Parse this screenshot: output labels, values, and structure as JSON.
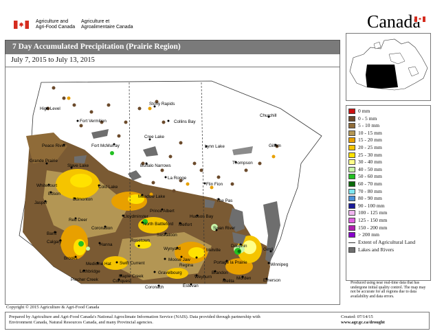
{
  "header": {
    "dept_en_line1": "Agriculture and",
    "dept_en_line2": "Agri-Food Canada",
    "dept_fr_line1": "Agriculture et",
    "dept_fr_line2": "Agroalimentaire Canada",
    "wordmark": "Canada"
  },
  "map": {
    "title": "7 Day Accumulated Precipitation (Prairie Region)",
    "date_range": "July 7, 2015 to July 13, 2015",
    "cities": [
      "High Level",
      "Fort Vermilion",
      "Stony Rapids",
      "Churchill",
      "Collins Bay",
      "Fort McMurray",
      "Cree Lake",
      "Peace River",
      "Gillam",
      "Lynn Lake",
      "Grande Prairie",
      "Slave Lake",
      "Buffalo Narrows",
      "Thompson",
      "Whitecourt",
      "Cold Lake",
      "La Ronge",
      "Flin Fion",
      "Edson",
      "Edmonton",
      "Meadow Lake",
      "Jasper",
      "The Pas",
      "Red Deer",
      "Lloydminster",
      "Prince Albert",
      "North Battleford",
      "Hudson Bay",
      "Coronation",
      "Melfort",
      "Swan River",
      "Calgary",
      "Hanna",
      "Saskatoon",
      "Banff",
      "Rosetown",
      "Wynyard",
      "Dauphin",
      "Brooks",
      "Melville",
      "Medicine Hat",
      "Moose Jaw",
      "Regina",
      "Portage la Prairie",
      "Lethbridge",
      "Swift Current",
      "Pincher Creek",
      "Maple Creek",
      "Gravelbourg",
      "Brandon",
      "Winnipeg",
      "Coronach",
      "Weyburn",
      "Morden",
      "Emerson",
      "Estevan",
      "Melita",
      "Conquest",
      "Gimli"
    ]
  },
  "legend": {
    "items": [
      {
        "label": "0 mm",
        "color": "#cc1111"
      },
      {
        "label": "0 - 5 mm",
        "color": "#6b4a2b"
      },
      {
        "label": "5 - 10 mm",
        "color": "#8f6b38"
      },
      {
        "label": "10 - 15 mm",
        "color": "#b39654"
      },
      {
        "label": "15 - 20 mm",
        "color": "#e8a000"
      },
      {
        "label": "20 - 25 mm",
        "color": "#f5c400"
      },
      {
        "label": "25 - 30 mm",
        "color": "#ffe200"
      },
      {
        "label": "30 - 40 mm",
        "color": "#ffff8a"
      },
      {
        "label": "40 - 50 mm",
        "color": "#c8f5a8"
      },
      {
        "label": "50 - 60 mm",
        "color": "#22c022"
      },
      {
        "label": "60 - 70 mm",
        "color": "#0a6a0a"
      },
      {
        "label": "70 - 80 mm",
        "color": "#7fe6f0"
      },
      {
        "label": "80 - 90 mm",
        "color": "#4a90d9"
      },
      {
        "label": "90 - 100 mm",
        "color": "#1a1a99"
      },
      {
        "label": "100 - 125 mm",
        "color": "#f0b6f0"
      },
      {
        "label": "125 - 150 mm",
        "color": "#e060e0"
      },
      {
        "label": "150 - 200 mm",
        "color": "#b020b0"
      },
      {
        "label": "> 200 mm",
        "color": "#8800cc"
      }
    ],
    "extent_label": "Extent of Agricultural Land",
    "lakes_label": "Lakes and Rivers",
    "note": "Produced using near real-time data that has undergone initial quality control. The map may not be accurate for all regions due to data availability and data errors."
  },
  "footer": {
    "copyright": "Copyright © 2015 Agriculture & Agri-Food Canada",
    "prepared_line1": "Prepared by Agriculture and Agri-Food Canada's National Agroclimate Information Service (NAIS).  Data provided through partnership with",
    "prepared_line2": "Environment Canada, Natural Resources Canada, and many Provincial agencies.",
    "created": "Created: 07/14/15",
    "url": "www.agr.gc.ca/drought"
  }
}
